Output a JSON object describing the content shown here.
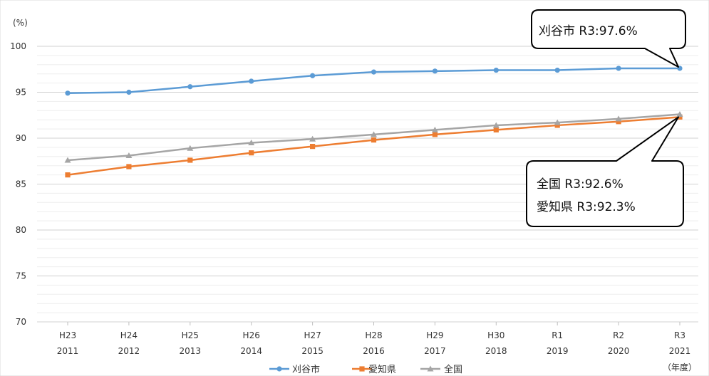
{
  "chart_data": {
    "type": "line",
    "y_unit_label": "(%)",
    "x_unit_label": "（年度）",
    "categories": [
      {
        "era": "H23",
        "year": "2011"
      },
      {
        "era": "H24",
        "year": "2012"
      },
      {
        "era": "H25",
        "year": "2013"
      },
      {
        "era": "H26",
        "year": "2014"
      },
      {
        "era": "H27",
        "year": "2015"
      },
      {
        "era": "H28",
        "year": "2016"
      },
      {
        "era": "H29",
        "year": "2017"
      },
      {
        "era": "H30",
        "year": "2018"
      },
      {
        "era": "R1",
        "year": "2019"
      },
      {
        "era": "R2",
        "year": "2020"
      },
      {
        "era": "R3",
        "year": "2021"
      }
    ],
    "ylim": [
      70,
      100
    ],
    "y_ticks": [
      70,
      75,
      80,
      85,
      90,
      95,
      100
    ],
    "minor_grid_step": 1,
    "grid": true,
    "legend_position": "bottom",
    "series": [
      {
        "name": "刈谷市",
        "color": "#5B9BD5",
        "marker": "circle",
        "values": [
          94.9,
          95.0,
          95.6,
          96.2,
          96.8,
          97.2,
          97.3,
          97.4,
          97.4,
          97.6,
          97.6
        ]
      },
      {
        "name": "愛知県",
        "color": "#ED7D31",
        "marker": "square",
        "values": [
          86.0,
          86.9,
          87.6,
          88.4,
          89.1,
          89.8,
          90.4,
          90.9,
          91.4,
          91.8,
          92.3
        ]
      },
      {
        "name": "全国",
        "color": "#A5A5A5",
        "marker": "triangle",
        "values": [
          87.6,
          88.1,
          88.9,
          89.5,
          89.9,
          90.4,
          90.9,
          91.4,
          91.7,
          92.1,
          92.6
        ]
      }
    ],
    "annotations": [
      {
        "id": "kariya",
        "lines": [
          "刈谷市 R3:97.6%"
        ]
      },
      {
        "id": "national-aichi",
        "lines": [
          "全国 R3:92.6%",
          "愛知県 R3:92.3%"
        ]
      }
    ]
  }
}
